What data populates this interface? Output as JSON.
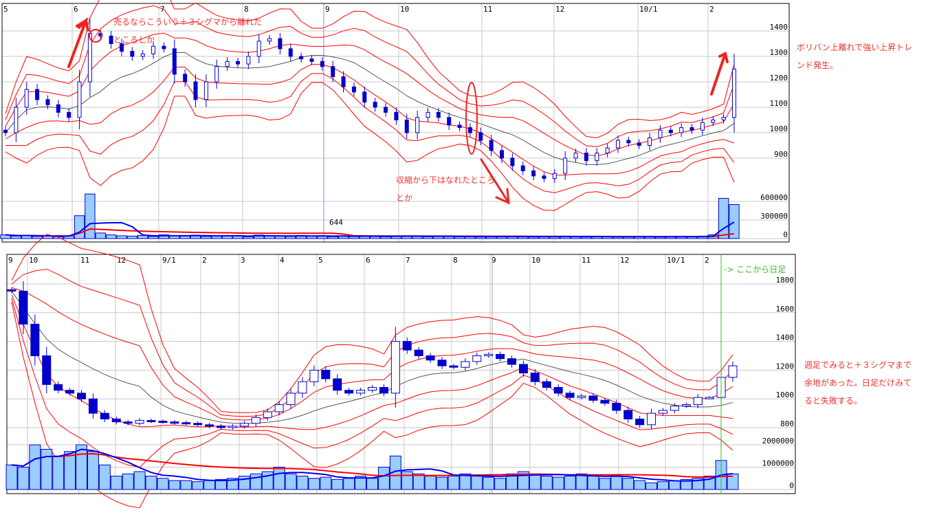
{
  "chart_data": [
    {
      "type": "candlestick",
      "name": "daily",
      "x_tick_labels": [
        "5",
        "6",
        "7",
        "8",
        "9",
        "10",
        "11",
        "12",
        "10/1",
        "2"
      ],
      "y_tick_labels": [
        "1400",
        "1300",
        "1200",
        "1100",
        "1000",
        "900"
      ],
      "volume_tick_labels": [
        "600000",
        "300000",
        "0"
      ],
      "ylim": [
        760,
        1480
      ],
      "volume_ylim": [
        0,
        760000
      ],
      "cursor_label": "644",
      "closes": [
        1000,
        1100,
        1170,
        1130,
        1110,
        1080,
        1060,
        1200,
        1390,
        1380,
        1350,
        1320,
        1300,
        1310,
        1340,
        1330,
        1230,
        1200,
        1130,
        1200,
        1260,
        1280,
        1270,
        1300,
        1360,
        1370,
        1330,
        1300,
        1290,
        1280,
        1260,
        1220,
        1180,
        1160,
        1120,
        1100,
        1080,
        1050,
        1000,
        1060,
        1080,
        1060,
        1030,
        1020,
        1000,
        970,
        930,
        900,
        870,
        850,
        830,
        820,
        840,
        900,
        920,
        890,
        920,
        940,
        970,
        960,
        950,
        980,
        1010,
        1000,
        1020,
        1010,
        1040,
        1050,
        1060,
        1250
      ],
      "volumes": [
        60000,
        40000,
        50000,
        35000,
        45000,
        30000,
        40000,
        370000,
        720000,
        90000,
        60000,
        45000,
        40000,
        50000,
        35000,
        60000,
        45000,
        40000,
        55000,
        35000,
        40000,
        50000,
        45000,
        30000,
        55000,
        40000,
        45000,
        35000,
        50000,
        40000,
        45000,
        30000,
        40000,
        35000,
        45000,
        40000,
        30000,
        35000,
        45000,
        40000,
        30000,
        35000,
        40000,
        30000,
        35000,
        25000,
        30000,
        40000,
        35000,
        30000,
        25000,
        30000,
        35000,
        40000,
        30000,
        25000,
        30000,
        35000,
        25000,
        30000,
        35000,
        30000,
        25000,
        30000,
        35000,
        30000,
        40000,
        60000,
        650000,
        550000
      ],
      "bollinger": {
        "middle_color": "#555555",
        "band_color": "#ff0000",
        "sigmas": [
          1,
          2,
          3
        ]
      },
      "colors": {
        "candle": "#0000cc",
        "volume_fill": "#99ccff",
        "volume_ma_long": "#ff0000",
        "volume_ma_short": "#0000ee",
        "cursor_line": "#8888ff"
      }
    },
    {
      "type": "candlestick",
      "name": "weekly",
      "x_tick_labels": [
        "9",
        "10",
        "11",
        "12",
        "9/1",
        "2",
        "3",
        "4",
        "5",
        "6",
        "7",
        "8",
        "9",
        "10",
        "11",
        "12",
        "10/1",
        "2"
      ],
      "y_tick_labels": [
        "1800",
        "1600",
        "1400",
        "1200",
        "1000",
        "800"
      ],
      "volume_tick_labels": [
        "2000000",
        "1000000",
        "0"
      ],
      "ylim": [
        700,
        1900
      ],
      "volume_ylim": [
        0,
        2200000
      ],
      "closes": [
        1750,
        1520,
        1300,
        1100,
        1060,
        1040,
        1000,
        900,
        860,
        840,
        830,
        850,
        845,
        840,
        835,
        830,
        820,
        810,
        800,
        810,
        830,
        870,
        910,
        960,
        1040,
        1120,
        1200,
        1140,
        1060,
        1040,
        1060,
        1080,
        1040,
        1400,
        1340,
        1300,
        1270,
        1230,
        1220,
        1260,
        1300,
        1310,
        1280,
        1240,
        1180,
        1120,
        1080,
        1040,
        1010,
        1020,
        990,
        970,
        920,
        860,
        820,
        900,
        920,
        950,
        960,
        1010,
        1010,
        1150,
        1230
      ],
      "volumes": [
        1100000,
        1000000,
        2000000,
        1800000,
        1500000,
        1700000,
        2000000,
        1700000,
        1100000,
        600000,
        700000,
        800000,
        600000,
        500000,
        400000,
        400000,
        350000,
        400000,
        450000,
        500000,
        600000,
        700000,
        800000,
        1000000,
        700000,
        600000,
        500000,
        550000,
        450000,
        500000,
        600000,
        500000,
        1000000,
        1500000,
        800000,
        700000,
        600000,
        550000,
        600000,
        700000,
        600000,
        550000,
        500000,
        700000,
        800000,
        700000,
        600000,
        550000,
        600000,
        700000,
        600000,
        500000,
        600000,
        500000,
        400000,
        300000,
        350000,
        400000,
        450000,
        500000,
        600000,
        1300000,
        700000
      ],
      "bollinger": {
        "middle_color": "#555555",
        "band_color": "#ff0000",
        "sigmas": [
          1,
          2,
          3
        ]
      },
      "colors": {
        "candle": "#0000cc",
        "volume_fill": "#99ccff",
        "volume_ma_long": "#ff0000",
        "volume_ma_short": "#0000ee",
        "daily_marker": "#33bb22"
      }
    }
  ],
  "annotations": {
    "sell_note_1": "売るならこういう＋３シグマから離れた",
    "sell_note_2": "ところとか",
    "squeeze_note_1": "収縮から下はなれたところ",
    "squeeze_note_2": "とか",
    "trend_note_1": "ボリバン上離れで強い上昇トレ",
    "trend_note_2": "ンド発生。",
    "daily_from": "-> ここから日足",
    "weekly_note_1": "週足でみると＋３シグマまで",
    "weekly_note_2": "余地があった。日足だけみて",
    "weekly_note_3": "ると失敗する。",
    "marker_color": "#ee2222"
  }
}
